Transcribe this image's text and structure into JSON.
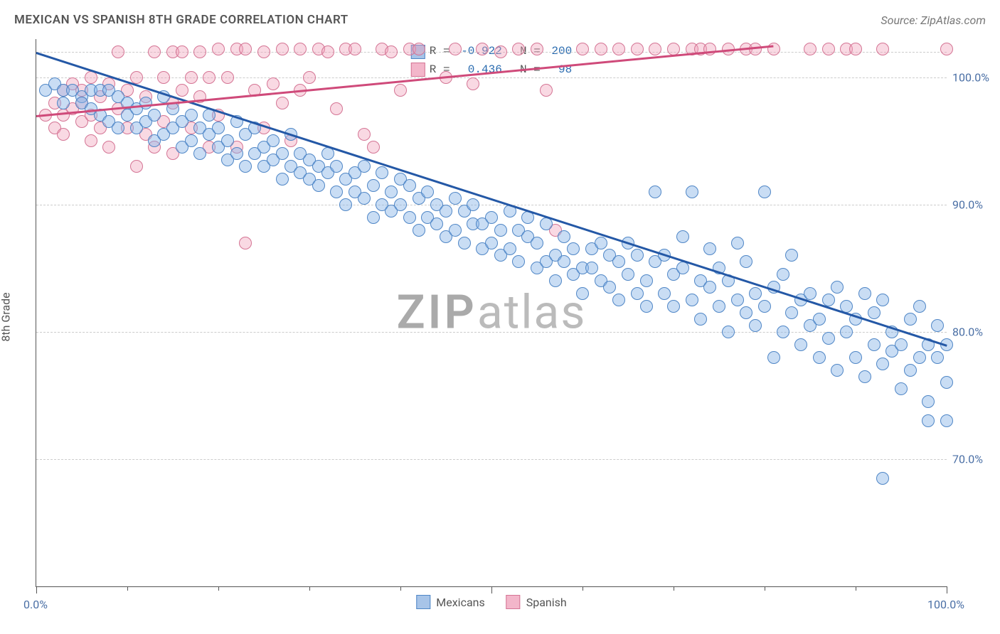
{
  "header": {
    "title": "MEXICAN VS SPANISH 8TH GRADE CORRELATION CHART",
    "source": "Source: ZipAtlas.com"
  },
  "watermark": {
    "zip": "ZIP",
    "atlas": "atlas"
  },
  "y_axis": {
    "label": "8th Grade",
    "ticks": [
      {
        "v": 70,
        "label": "70.0%"
      },
      {
        "v": 80,
        "label": "80.0%"
      },
      {
        "v": 90,
        "label": "90.0%"
      },
      {
        "v": 100,
        "label": "100.0%"
      }
    ],
    "grid_extra_top": 102
  },
  "x_axis": {
    "ticks_major": [
      0,
      50,
      100
    ],
    "ticks_minor": [
      10,
      20,
      30,
      40,
      60,
      70,
      80,
      90
    ],
    "labels": [
      {
        "v": 0,
        "label": "0.0%"
      },
      {
        "v": 100,
        "label": "100.0%"
      }
    ]
  },
  "chart": {
    "type": "scatter",
    "xlim": [
      0,
      100
    ],
    "ylim": [
      60,
      103
    ],
    "background": "#ffffff",
    "grid_color": "#cccccc",
    "point_radius": 8,
    "point_stroke_width": 1.5,
    "series": [
      {
        "name": "Mexicans",
        "fill": "rgba(135,180,230,0.45)",
        "stroke": "#4f86c6",
        "swatch_fill": "#a7c4e8",
        "swatch_stroke": "#4f86c6",
        "stats": {
          "R": "-0.922",
          "N": "200"
        },
        "trend": {
          "x1": 0,
          "y1": 102,
          "x2": 100,
          "y2": 79,
          "color": "#2458a6",
          "width": 2.5
        },
        "points": [
          [
            1,
            99
          ],
          [
            2,
            99.5
          ],
          [
            3,
            99
          ],
          [
            3,
            98
          ],
          [
            4,
            99
          ],
          [
            5,
            98.5
          ],
          [
            5,
            98
          ],
          [
            6,
            99
          ],
          [
            6,
            97.5
          ],
          [
            7,
            99
          ],
          [
            7,
            97
          ],
          [
            8,
            99
          ],
          [
            8,
            96.5
          ],
          [
            9,
            98.5
          ],
          [
            9,
            96
          ],
          [
            10,
            98
          ],
          [
            10,
            97
          ],
          [
            11,
            97.5
          ],
          [
            11,
            96
          ],
          [
            12,
            98
          ],
          [
            12,
            96.5
          ],
          [
            13,
            97
          ],
          [
            13,
            95
          ],
          [
            14,
            98.5
          ],
          [
            14,
            95.5
          ],
          [
            15,
            96
          ],
          [
            15,
            97.5
          ],
          [
            16,
            96.5
          ],
          [
            16,
            94.5
          ],
          [
            17,
            97
          ],
          [
            17,
            95
          ],
          [
            18,
            96
          ],
          [
            18,
            94
          ],
          [
            19,
            95.5
          ],
          [
            19,
            97
          ],
          [
            20,
            94.5
          ],
          [
            20,
            96
          ],
          [
            21,
            95
          ],
          [
            21,
            93.5
          ],
          [
            22,
            96.5
          ],
          [
            22,
            94
          ],
          [
            23,
            93
          ],
          [
            23,
            95.5
          ],
          [
            24,
            94
          ],
          [
            24,
            96
          ],
          [
            25,
            93
          ],
          [
            25,
            94.5
          ],
          [
            26,
            93.5
          ],
          [
            26,
            95
          ],
          [
            27,
            92
          ],
          [
            27,
            94
          ],
          [
            28,
            93
          ],
          [
            28,
            95.5
          ],
          [
            29,
            92.5
          ],
          [
            29,
            94
          ],
          [
            30,
            92
          ],
          [
            30,
            93.5
          ],
          [
            31,
            93
          ],
          [
            31,
            91.5
          ],
          [
            32,
            92.5
          ],
          [
            32,
            94
          ],
          [
            33,
            91
          ],
          [
            33,
            93
          ],
          [
            34,
            92
          ],
          [
            34,
            90
          ],
          [
            35,
            92.5
          ],
          [
            35,
            91
          ],
          [
            36,
            90.5
          ],
          [
            36,
            93
          ],
          [
            37,
            91.5
          ],
          [
            37,
            89
          ],
          [
            38,
            92.5
          ],
          [
            38,
            90
          ],
          [
            39,
            89.5
          ],
          [
            39,
            91
          ],
          [
            40,
            90
          ],
          [
            40,
            92
          ],
          [
            41,
            89
          ],
          [
            41,
            91.5
          ],
          [
            42,
            90.5
          ],
          [
            42,
            88
          ],
          [
            43,
            89
          ],
          [
            43,
            91
          ],
          [
            44,
            88.5
          ],
          [
            44,
            90
          ],
          [
            45,
            89.5
          ],
          [
            45,
            87.5
          ],
          [
            46,
            90.5
          ],
          [
            46,
            88
          ],
          [
            47,
            87
          ],
          [
            47,
            89.5
          ],
          [
            48,
            88.5
          ],
          [
            48,
            90
          ],
          [
            49,
            86.5
          ],
          [
            49,
            88.5
          ],
          [
            50,
            89
          ],
          [
            50,
            87
          ],
          [
            51,
            86
          ],
          [
            51,
            88
          ],
          [
            52,
            89.5
          ],
          [
            52,
            86.5
          ],
          [
            53,
            85.5
          ],
          [
            53,
            88
          ],
          [
            54,
            87.5
          ],
          [
            54,
            89
          ],
          [
            55,
            85
          ],
          [
            55,
            87
          ],
          [
            56,
            88.5
          ],
          [
            56,
            85.5
          ],
          [
            57,
            86
          ],
          [
            57,
            84
          ],
          [
            58,
            87.5
          ],
          [
            58,
            85.5
          ],
          [
            59,
            86.5
          ],
          [
            59,
            84.5
          ],
          [
            60,
            85
          ],
          [
            60,
            83
          ],
          [
            61,
            86.5
          ],
          [
            61,
            85
          ],
          [
            62,
            84
          ],
          [
            62,
            87
          ],
          [
            63,
            83.5
          ],
          [
            63,
            86
          ],
          [
            64,
            85.5
          ],
          [
            64,
            82.5
          ],
          [
            65,
            84.5
          ],
          [
            65,
            87
          ],
          [
            66,
            86
          ],
          [
            66,
            83
          ],
          [
            67,
            84
          ],
          [
            67,
            82
          ],
          [
            68,
            85.5
          ],
          [
            68,
            91
          ],
          [
            69,
            83
          ],
          [
            69,
            86
          ],
          [
            70,
            84.5
          ],
          [
            70,
            82
          ],
          [
            71,
            85
          ],
          [
            71,
            87.5
          ],
          [
            72,
            91
          ],
          [
            72,
            82.5
          ],
          [
            73,
            84
          ],
          [
            73,
            81
          ],
          [
            74,
            83.5
          ],
          [
            74,
            86.5
          ],
          [
            75,
            82
          ],
          [
            75,
            85
          ],
          [
            76,
            80
          ],
          [
            76,
            84
          ],
          [
            77,
            82.5
          ],
          [
            77,
            87
          ],
          [
            78,
            85.5
          ],
          [
            78,
            81.5
          ],
          [
            79,
            80.5
          ],
          [
            79,
            83
          ],
          [
            80,
            82
          ],
          [
            80,
            91
          ],
          [
            81,
            83.5
          ],
          [
            81,
            78
          ],
          [
            82,
            80
          ],
          [
            82,
            84.5
          ],
          [
            83,
            81.5
          ],
          [
            83,
            86
          ],
          [
            84,
            82.5
          ],
          [
            84,
            79
          ],
          [
            85,
            83
          ],
          [
            85,
            80.5
          ],
          [
            86,
            81
          ],
          [
            86,
            78
          ],
          [
            87,
            82.5
          ],
          [
            87,
            79.5
          ],
          [
            88,
            83.5
          ],
          [
            88,
            77
          ],
          [
            89,
            80
          ],
          [
            89,
            82
          ],
          [
            90,
            78
          ],
          [
            90,
            81
          ],
          [
            91,
            83
          ],
          [
            91,
            76.5
          ],
          [
            92,
            79
          ],
          [
            92,
            81.5
          ],
          [
            93,
            82.5
          ],
          [
            93,
            77.5
          ],
          [
            94,
            80
          ],
          [
            94,
            78.5
          ],
          [
            95,
            75.5
          ],
          [
            95,
            79
          ],
          [
            96,
            81
          ],
          [
            96,
            77
          ],
          [
            97,
            78
          ],
          [
            97,
            82
          ],
          [
            98,
            73
          ],
          [
            98,
            79
          ],
          [
            98,
            74.5
          ],
          [
            99,
            78
          ],
          [
            99,
            80.5
          ],
          [
            100,
            76
          ],
          [
            100,
            79
          ],
          [
            93,
            68.5
          ],
          [
            100,
            73
          ]
        ]
      },
      {
        "name": "Spanish",
        "fill": "rgba(240,160,185,0.40)",
        "stroke": "#d47494",
        "swatch_fill": "#f3b6ca",
        "swatch_stroke": "#d47494",
        "stats": {
          "R": " 0.436",
          "N": " 98"
        },
        "trend": {
          "x1": 0,
          "y1": 97,
          "x2": 81,
          "y2": 102.5,
          "color": "#cf4a7a",
          "width": 2.5
        },
        "points": [
          [
            1,
            97
          ],
          [
            2,
            98
          ],
          [
            2,
            96
          ],
          [
            3,
            99
          ],
          [
            3,
            97
          ],
          [
            3,
            95.5
          ],
          [
            4,
            97.5
          ],
          [
            4,
            99.5
          ],
          [
            5,
            96.5
          ],
          [
            5,
            98
          ],
          [
            5,
            99
          ],
          [
            6,
            97
          ],
          [
            6,
            95
          ],
          [
            6,
            100
          ],
          [
            7,
            98.5
          ],
          [
            7,
            96
          ],
          [
            8,
            99.5
          ],
          [
            8,
            94.5
          ],
          [
            9,
            97.5
          ],
          [
            9,
            102
          ],
          [
            10,
            99
          ],
          [
            10,
            96
          ],
          [
            11,
            100
          ],
          [
            11,
            93
          ],
          [
            12,
            98.5
          ],
          [
            12,
            95.5
          ],
          [
            13,
            102
          ],
          [
            13,
            94.5
          ],
          [
            14,
            100
          ],
          [
            14,
            96.5
          ],
          [
            15,
            102
          ],
          [
            15,
            98
          ],
          [
            15,
            94
          ],
          [
            16,
            99
          ],
          [
            16,
            102
          ],
          [
            17,
            96
          ],
          [
            17,
            100
          ],
          [
            18,
            102
          ],
          [
            18,
            98.5
          ],
          [
            19,
            94.5
          ],
          [
            19,
            100
          ],
          [
            20,
            102.2
          ],
          [
            20,
            97
          ],
          [
            21,
            100
          ],
          [
            22,
            102.2
          ],
          [
            22,
            94.5
          ],
          [
            23,
            102.2
          ],
          [
            23,
            87
          ],
          [
            24,
            99
          ],
          [
            25,
            102
          ],
          [
            25,
            96
          ],
          [
            26,
            99.5
          ],
          [
            27,
            102.2
          ],
          [
            27,
            98
          ],
          [
            28,
            95
          ],
          [
            29,
            102.2
          ],
          [
            29,
            99
          ],
          [
            30,
            100
          ],
          [
            31,
            102.2
          ],
          [
            32,
            102
          ],
          [
            33,
            97.5
          ],
          [
            34,
            102.2
          ],
          [
            35,
            102.2
          ],
          [
            36,
            95.5
          ],
          [
            37,
            94.5
          ],
          [
            38,
            102.2
          ],
          [
            39,
            102
          ],
          [
            40,
            99
          ],
          [
            41,
            102.2
          ],
          [
            42,
            102.2
          ],
          [
            45,
            100
          ],
          [
            46,
            102.2
          ],
          [
            48,
            99.5
          ],
          [
            49,
            102.2
          ],
          [
            51,
            102
          ],
          [
            53,
            102.2
          ],
          [
            55,
            102.2
          ],
          [
            56,
            99
          ],
          [
            57,
            88
          ],
          [
            60,
            102.2
          ],
          [
            62,
            102.2
          ],
          [
            64,
            102.2
          ],
          [
            66,
            102.2
          ],
          [
            68,
            102.2
          ],
          [
            70,
            102.2
          ],
          [
            72,
            102.2
          ],
          [
            73,
            102.2
          ],
          [
            74,
            102.2
          ],
          [
            76,
            102.2
          ],
          [
            78,
            102.2
          ],
          [
            79,
            102.2
          ],
          [
            81,
            102.2
          ],
          [
            85,
            102.2
          ],
          [
            87,
            102.2
          ],
          [
            89,
            102.2
          ],
          [
            90,
            102.2
          ],
          [
            93,
            102.2
          ],
          [
            100,
            102.2
          ]
        ]
      }
    ]
  },
  "legend": [
    {
      "series": 0,
      "label": "Mexicans"
    },
    {
      "series": 1,
      "label": "Spanish"
    }
  ]
}
